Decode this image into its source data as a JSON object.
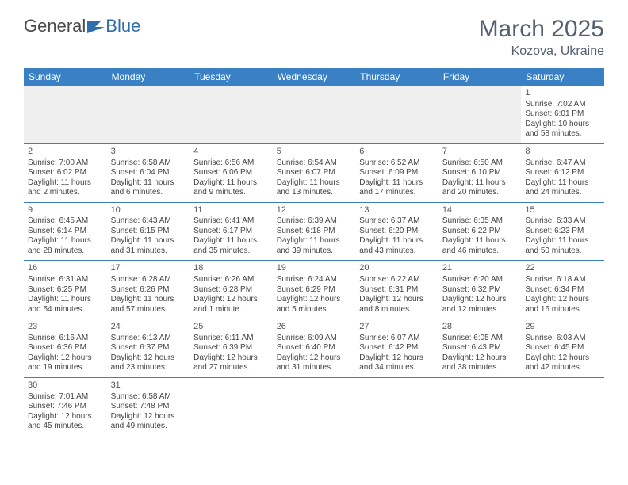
{
  "logo": {
    "text1": "General",
    "text2": "Blue"
  },
  "title": {
    "month": "March 2025",
    "location": "Kozova, Ukraine"
  },
  "colors": {
    "header_bg": "#3a80c4",
    "header_text": "#ffffff",
    "cell_border": "#3a80c4",
    "text": "#444444",
    "title_text": "#556070",
    "empty_bg": "#efefef"
  },
  "weekdays": [
    "Sunday",
    "Monday",
    "Tuesday",
    "Wednesday",
    "Thursday",
    "Friday",
    "Saturday"
  ],
  "weeks": [
    [
      null,
      null,
      null,
      null,
      null,
      null,
      {
        "n": "1",
        "sr": "Sunrise: 7:02 AM",
        "ss": "Sunset: 6:01 PM",
        "dl": "Daylight: 10 hours and 58 minutes."
      }
    ],
    [
      {
        "n": "2",
        "sr": "Sunrise: 7:00 AM",
        "ss": "Sunset: 6:02 PM",
        "dl": "Daylight: 11 hours and 2 minutes."
      },
      {
        "n": "3",
        "sr": "Sunrise: 6:58 AM",
        "ss": "Sunset: 6:04 PM",
        "dl": "Daylight: 11 hours and 6 minutes."
      },
      {
        "n": "4",
        "sr": "Sunrise: 6:56 AM",
        "ss": "Sunset: 6:06 PM",
        "dl": "Daylight: 11 hours and 9 minutes."
      },
      {
        "n": "5",
        "sr": "Sunrise: 6:54 AM",
        "ss": "Sunset: 6:07 PM",
        "dl": "Daylight: 11 hours and 13 minutes."
      },
      {
        "n": "6",
        "sr": "Sunrise: 6:52 AM",
        "ss": "Sunset: 6:09 PM",
        "dl": "Daylight: 11 hours and 17 minutes."
      },
      {
        "n": "7",
        "sr": "Sunrise: 6:50 AM",
        "ss": "Sunset: 6:10 PM",
        "dl": "Daylight: 11 hours and 20 minutes."
      },
      {
        "n": "8",
        "sr": "Sunrise: 6:47 AM",
        "ss": "Sunset: 6:12 PM",
        "dl": "Daylight: 11 hours and 24 minutes."
      }
    ],
    [
      {
        "n": "9",
        "sr": "Sunrise: 6:45 AM",
        "ss": "Sunset: 6:14 PM",
        "dl": "Daylight: 11 hours and 28 minutes."
      },
      {
        "n": "10",
        "sr": "Sunrise: 6:43 AM",
        "ss": "Sunset: 6:15 PM",
        "dl": "Daylight: 11 hours and 31 minutes."
      },
      {
        "n": "11",
        "sr": "Sunrise: 6:41 AM",
        "ss": "Sunset: 6:17 PM",
        "dl": "Daylight: 11 hours and 35 minutes."
      },
      {
        "n": "12",
        "sr": "Sunrise: 6:39 AM",
        "ss": "Sunset: 6:18 PM",
        "dl": "Daylight: 11 hours and 39 minutes."
      },
      {
        "n": "13",
        "sr": "Sunrise: 6:37 AM",
        "ss": "Sunset: 6:20 PM",
        "dl": "Daylight: 11 hours and 43 minutes."
      },
      {
        "n": "14",
        "sr": "Sunrise: 6:35 AM",
        "ss": "Sunset: 6:22 PM",
        "dl": "Daylight: 11 hours and 46 minutes."
      },
      {
        "n": "15",
        "sr": "Sunrise: 6:33 AM",
        "ss": "Sunset: 6:23 PM",
        "dl": "Daylight: 11 hours and 50 minutes."
      }
    ],
    [
      {
        "n": "16",
        "sr": "Sunrise: 6:31 AM",
        "ss": "Sunset: 6:25 PM",
        "dl": "Daylight: 11 hours and 54 minutes."
      },
      {
        "n": "17",
        "sr": "Sunrise: 6:28 AM",
        "ss": "Sunset: 6:26 PM",
        "dl": "Daylight: 11 hours and 57 minutes."
      },
      {
        "n": "18",
        "sr": "Sunrise: 6:26 AM",
        "ss": "Sunset: 6:28 PM",
        "dl": "Daylight: 12 hours and 1 minute."
      },
      {
        "n": "19",
        "sr": "Sunrise: 6:24 AM",
        "ss": "Sunset: 6:29 PM",
        "dl": "Daylight: 12 hours and 5 minutes."
      },
      {
        "n": "20",
        "sr": "Sunrise: 6:22 AM",
        "ss": "Sunset: 6:31 PM",
        "dl": "Daylight: 12 hours and 8 minutes."
      },
      {
        "n": "21",
        "sr": "Sunrise: 6:20 AM",
        "ss": "Sunset: 6:32 PM",
        "dl": "Daylight: 12 hours and 12 minutes."
      },
      {
        "n": "22",
        "sr": "Sunrise: 6:18 AM",
        "ss": "Sunset: 6:34 PM",
        "dl": "Daylight: 12 hours and 16 minutes."
      }
    ],
    [
      {
        "n": "23",
        "sr": "Sunrise: 6:16 AM",
        "ss": "Sunset: 6:36 PM",
        "dl": "Daylight: 12 hours and 19 minutes."
      },
      {
        "n": "24",
        "sr": "Sunrise: 6:13 AM",
        "ss": "Sunset: 6:37 PM",
        "dl": "Daylight: 12 hours and 23 minutes."
      },
      {
        "n": "25",
        "sr": "Sunrise: 6:11 AM",
        "ss": "Sunset: 6:39 PM",
        "dl": "Daylight: 12 hours and 27 minutes."
      },
      {
        "n": "26",
        "sr": "Sunrise: 6:09 AM",
        "ss": "Sunset: 6:40 PM",
        "dl": "Daylight: 12 hours and 31 minutes."
      },
      {
        "n": "27",
        "sr": "Sunrise: 6:07 AM",
        "ss": "Sunset: 6:42 PM",
        "dl": "Daylight: 12 hours and 34 minutes."
      },
      {
        "n": "28",
        "sr": "Sunrise: 6:05 AM",
        "ss": "Sunset: 6:43 PM",
        "dl": "Daylight: 12 hours and 38 minutes."
      },
      {
        "n": "29",
        "sr": "Sunrise: 6:03 AM",
        "ss": "Sunset: 6:45 PM",
        "dl": "Daylight: 12 hours and 42 minutes."
      }
    ],
    [
      {
        "n": "30",
        "sr": "Sunrise: 7:01 AM",
        "ss": "Sunset: 7:46 PM",
        "dl": "Daylight: 12 hours and 45 minutes."
      },
      {
        "n": "31",
        "sr": "Sunrise: 6:58 AM",
        "ss": "Sunset: 7:48 PM",
        "dl": "Daylight: 12 hours and 49 minutes."
      },
      null,
      null,
      null,
      null,
      null
    ]
  ]
}
